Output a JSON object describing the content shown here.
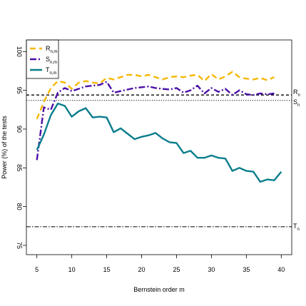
{
  "chart_data": {
    "type": "line",
    "title": "",
    "xlabel": "Bernstein order m",
    "ylabel": "Power (%) of the tests",
    "xlim": [
      3.5,
      41.5
    ],
    "ylim": [
      73.8,
      101.5
    ],
    "xticks": [
      5,
      10,
      15,
      20,
      25,
      30,
      35,
      40
    ],
    "yticks": [
      75,
      80,
      85,
      90,
      95,
      100
    ],
    "grid": false,
    "legend_position": "top-left",
    "x": [
      5,
      6,
      7,
      8,
      9,
      10,
      11,
      12,
      13,
      14,
      15,
      16,
      17,
      18,
      19,
      20,
      21,
      22,
      23,
      24,
      25,
      26,
      27,
      28,
      29,
      30,
      31,
      32,
      33,
      34,
      35,
      36,
      37,
      38,
      39,
      40
    ],
    "series": [
      {
        "name": "R",
        "subscript": "n,m",
        "color": "#F5B700",
        "dash": "8,5",
        "values": [
          91.3,
          93.5,
          95.3,
          96.2,
          96.0,
          95.2,
          96.0,
          96.2,
          96.0,
          95.9,
          96.6,
          96.4,
          96.7,
          97.0,
          97.0,
          96.8,
          97.0,
          96.7,
          96.4,
          96.7,
          96.8,
          96.7,
          96.9,
          97.0,
          96.2,
          97.1,
          96.4,
          96.8,
          97.4,
          96.7,
          96.5,
          96.4,
          96.6,
          96.3,
          96.7,
          null
        ]
      },
      {
        "name": "S",
        "subscript": "n,m",
        "color": "#4B0FA8",
        "dash": "9,3,2,3",
        "values": [
          86.0,
          92.8,
          92.5,
          94.7,
          95.3,
          94.9,
          95.2,
          95.5,
          95.6,
          95.7,
          96.1,
          94.7,
          94.9,
          95.1,
          95.3,
          95.4,
          95.5,
          95.3,
          95.2,
          95.1,
          95.3,
          94.7,
          95.0,
          95.6,
          94.6,
          95.3,
          94.8,
          95.2,
          94.4,
          95.0,
          94.5,
          94.4,
          94.6,
          94.5,
          94.6,
          null
        ]
      },
      {
        "name": "T",
        "subscript": "n,m",
        "color": "#0A7D8C",
        "dash": "",
        "values": [
          87.3,
          89.3,
          91.8,
          93.3,
          93.0,
          91.6,
          92.3,
          92.7,
          91.5,
          91.6,
          91.5,
          89.6,
          90.1,
          89.4,
          88.7,
          89.0,
          89.2,
          89.5,
          88.8,
          88.3,
          88.2,
          86.9,
          87.2,
          86.3,
          86.3,
          86.6,
          86.3,
          86.2,
          84.6,
          85.0,
          84.6,
          84.5,
          83.2,
          83.5,
          83.4,
          84.5
        ]
      }
    ],
    "reference_lines": [
      {
        "label": "R",
        "subscript": "n",
        "y": 94.4,
        "style": "dashed"
      },
      {
        "label": "S",
        "subscript": "n",
        "y": 93.7,
        "style": "dotted"
      },
      {
        "label": "T",
        "subscript": "n",
        "y": 77.4,
        "style": "dashdot"
      }
    ]
  }
}
